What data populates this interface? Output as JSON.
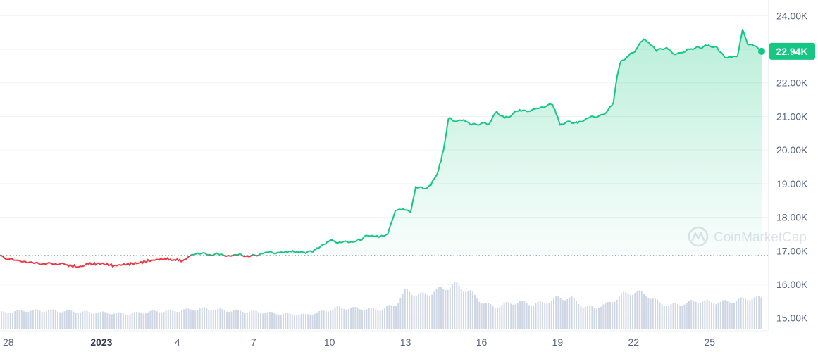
{
  "chart_data": {
    "type": "line",
    "title": "",
    "xlabel": "",
    "ylabel": "",
    "x_ticks": [
      {
        "label": "28",
        "day": 0,
        "bold": false
      },
      {
        "label": "2023",
        "day": 4,
        "bold": true
      },
      {
        "label": "4",
        "day": 7,
        "bold": false
      },
      {
        "label": "7",
        "day": 10,
        "bold": false
      },
      {
        "label": "10",
        "day": 13,
        "bold": false
      },
      {
        "label": "13",
        "day": 16,
        "bold": false
      },
      {
        "label": "16",
        "day": 19,
        "bold": false
      },
      {
        "label": "19",
        "day": 22,
        "bold": false
      },
      {
        "label": "22",
        "day": 25,
        "bold": false
      },
      {
        "label": "25",
        "day": 28,
        "bold": false
      }
    ],
    "y_ticks": [
      {
        "label": "24.00K",
        "value": 24000
      },
      {
        "label": "23.00K",
        "value": 23000
      },
      {
        "label": "22.00K",
        "value": 22000
      },
      {
        "label": "21.00K",
        "value": 21000
      },
      {
        "label": "20.00K",
        "value": 20000
      },
      {
        "label": "19.00K",
        "value": 19000
      },
      {
        "label": "18.00K",
        "value": 18000
      },
      {
        "label": "17.00K",
        "value": 17000
      },
      {
        "label": "16.00K",
        "value": 16000
      },
      {
        "label": "15.00K",
        "value": 15000
      }
    ],
    "ylim": [
      14700,
      24300
    ],
    "xlim": [
      0,
      30.3
    ],
    "baseline_price": 16870,
    "current_price_label": "22.94K",
    "current_price": 22940,
    "grid": true,
    "colors": {
      "up": "#16c784",
      "down": "#ea3943",
      "grid": "#eff2f5",
      "volume": "#cfd6e4",
      "tag": "#16c784"
    },
    "series": [
      {
        "values": [
          [
            0,
            16870
          ],
          [
            0.3,
            16750
          ],
          [
            0.6,
            16720
          ],
          [
            1,
            16680
          ],
          [
            1.4,
            16640
          ],
          [
            1.8,
            16600
          ],
          [
            2.2,
            16620
          ],
          [
            2.6,
            16580
          ],
          [
            3.1,
            16520
          ],
          [
            3.5,
            16600
          ],
          [
            4,
            16620
          ],
          [
            4.5,
            16560
          ],
          [
            5,
            16600
          ],
          [
            5.5,
            16640
          ],
          [
            6,
            16720
          ],
          [
            6.5,
            16760
          ],
          [
            7.2,
            16700
          ],
          [
            7.5,
            16850
          ],
          [
            7.8,
            16930
          ],
          [
            8.2,
            16880
          ],
          [
            8.6,
            16900
          ],
          [
            9,
            16860
          ],
          [
            9.4,
            16880
          ],
          [
            9.8,
            16830
          ],
          [
            10.2,
            16870
          ],
          [
            10.3,
            16920
          ],
          [
            10.6,
            16960
          ],
          [
            11,
            16950
          ],
          [
            11.5,
            16970
          ],
          [
            12,
            16960
          ],
          [
            12.3,
            16970
          ],
          [
            12.5,
            17080
          ],
          [
            12.8,
            17200
          ],
          [
            13,
            17300
          ],
          [
            13.4,
            17260
          ],
          [
            13.8,
            17250
          ],
          [
            14.2,
            17320
          ],
          [
            14.5,
            17450
          ],
          [
            15,
            17430
          ],
          [
            15.3,
            17500
          ],
          [
            15.6,
            18200
          ],
          [
            15.9,
            18250
          ],
          [
            16.2,
            18150
          ],
          [
            16.4,
            18900
          ],
          [
            16.7,
            18850
          ],
          [
            17,
            18950
          ],
          [
            17.3,
            19400
          ],
          [
            17.5,
            20000
          ],
          [
            17.7,
            20950
          ],
          [
            18,
            20850
          ],
          [
            18.3,
            20900
          ],
          [
            18.6,
            20750
          ],
          [
            19,
            20800
          ],
          [
            19.3,
            20780
          ],
          [
            19.6,
            21150
          ],
          [
            19.9,
            20950
          ],
          [
            20.2,
            21050
          ],
          [
            20.5,
            21200
          ],
          [
            20.8,
            21150
          ],
          [
            21.1,
            21220
          ],
          [
            21.4,
            21280
          ],
          [
            21.8,
            21350
          ],
          [
            22,
            21000
          ],
          [
            22.1,
            20750
          ],
          [
            22.5,
            20850
          ],
          [
            22.8,
            20800
          ],
          [
            23.2,
            20950
          ],
          [
            23.6,
            21000
          ],
          [
            23.9,
            21100
          ],
          [
            24.2,
            21400
          ],
          [
            24.35,
            22200
          ],
          [
            24.5,
            22650
          ],
          [
            24.8,
            22800
          ],
          [
            25.1,
            23000
          ],
          [
            25.4,
            23300
          ],
          [
            25.6,
            23200
          ],
          [
            25.9,
            22950
          ],
          [
            26.3,
            23050
          ],
          [
            26.6,
            22850
          ],
          [
            26.9,
            22900
          ],
          [
            27.2,
            23000
          ],
          [
            27.6,
            23050
          ],
          [
            27.9,
            23100
          ],
          [
            28.3,
            23050
          ],
          [
            28.6,
            22750
          ],
          [
            29.1,
            22800
          ],
          [
            29.3,
            23600
          ],
          [
            29.5,
            23150
          ],
          [
            29.8,
            23100
          ],
          [
            30.05,
            22940
          ]
        ]
      }
    ],
    "volume": {
      "values": [
        [
          0,
          0.32
        ],
        [
          1,
          0.36
        ],
        [
          2,
          0.36
        ],
        [
          3,
          0.34
        ],
        [
          4,
          0.32
        ],
        [
          5,
          0.3
        ],
        [
          6,
          0.34
        ],
        [
          7,
          0.36
        ],
        [
          8,
          0.4
        ],
        [
          9,
          0.36
        ],
        [
          10,
          0.34
        ],
        [
          11,
          0.3
        ],
        [
          12,
          0.28
        ],
        [
          12.8,
          0.35
        ],
        [
          13.3,
          0.42
        ],
        [
          14,
          0.4
        ],
        [
          15,
          0.38
        ],
        [
          15.6,
          0.48
        ],
        [
          16,
          0.75
        ],
        [
          16.5,
          0.65
        ],
        [
          17,
          0.7
        ],
        [
          17.5,
          0.8
        ],
        [
          18,
          0.85
        ],
        [
          18.5,
          0.72
        ],
        [
          19,
          0.52
        ],
        [
          19.5,
          0.42
        ],
        [
          20,
          0.5
        ],
        [
          20.5,
          0.52
        ],
        [
          21,
          0.48
        ],
        [
          21.5,
          0.52
        ],
        [
          22,
          0.6
        ],
        [
          22.5,
          0.6
        ],
        [
          23,
          0.44
        ],
        [
          23.5,
          0.42
        ],
        [
          24,
          0.5
        ],
        [
          24.5,
          0.66
        ],
        [
          25,
          0.72
        ],
        [
          25.5,
          0.66
        ],
        [
          26,
          0.5
        ],
        [
          26.5,
          0.46
        ],
        [
          27,
          0.5
        ],
        [
          27.5,
          0.55
        ],
        [
          28,
          0.52
        ],
        [
          28.5,
          0.52
        ],
        [
          29,
          0.55
        ],
        [
          29.5,
          0.6
        ],
        [
          30,
          0.6
        ]
      ]
    }
  },
  "watermark": {
    "text": "CoinMarketCap",
    "icon": "coinmarketcap-logo-icon"
  }
}
